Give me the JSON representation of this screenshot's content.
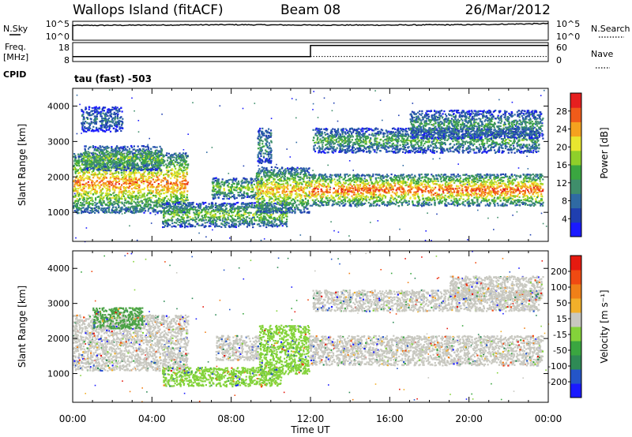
{
  "header": {
    "station": "Wallops Island (fitACF)",
    "beam": "Beam 08",
    "date": "26/Mar/2012"
  },
  "top_strip": {
    "left_label": "N.Sky",
    "left_ticks": [
      "10^5",
      "10^0"
    ],
    "right_ticks": [
      "10^5",
      "10^0"
    ],
    "right_label": "N.Search"
  },
  "freq_strip": {
    "left_label_1": "Freq.",
    "left_label_2": "[MHz]",
    "left_ticks": [
      "18",
      "8"
    ],
    "right_ticks": [
      "60",
      "0"
    ],
    "right_label": "Nave",
    "cpid_label": "CPID",
    "cpid_value": "tau (fast) -503"
  },
  "chart_data": [
    {
      "type": "line",
      "title": "N.Sky / N.Search",
      "x": [
        "00:00",
        "04:00",
        "08:00",
        "12:00",
        "16:00",
        "20:00",
        "00:00"
      ],
      "ylim_log10": [
        0,
        5
      ],
      "series": [
        {
          "name": "N.Sky",
          "values_log10": [
            3.9,
            4.0,
            4.1,
            4.0,
            4.0,
            4.1,
            4.4
          ]
        }
      ]
    },
    {
      "type": "line",
      "title": "Freq. / Nave",
      "xlim_hours": [
        0,
        24
      ],
      "left_ylim": [
        8,
        18
      ],
      "right_ylim": [
        0,
        60
      ],
      "series": [
        {
          "name": "Freq.",
          "points": [
            [
              0,
              10.6
            ],
            [
              12.0,
              10.6
            ],
            [
              12.0,
              16.5
            ],
            [
              24,
              16.5
            ]
          ]
        },
        {
          "name": "Nave",
          "points": [
            [
              0,
              16
            ],
            [
              24,
              16
            ]
          ]
        }
      ]
    },
    {
      "type": "heatmap",
      "title": "Power",
      "xlabel": "",
      "ylabel": "Slant Range [km]",
      "xlim_hours": [
        0,
        24
      ],
      "ylim": [
        180,
        4500
      ],
      "yticks": [
        "1000",
        "2000",
        "3000",
        "4000"
      ],
      "colorbar_label": "Power [dB]",
      "colorbar_ticks": [
        "4",
        "8",
        "12",
        "16",
        "20",
        "24",
        "28"
      ],
      "colorbar_colors": [
        "#1a1aff",
        "#1f3fb0",
        "#2f6aa3",
        "#3f8e6b",
        "#3aa640",
        "#8fcf2a",
        "#e9e62f",
        "#f5a21f",
        "#f05b1a",
        "#e61f1f"
      ],
      "bands": [
        {
          "t0": 0.0,
          "t1": 5.8,
          "r0": 1000,
          "r1": 2700,
          "level": 0.82
        },
        {
          "t0": 0.5,
          "t1": 4.5,
          "r0": 2200,
          "r1": 2900,
          "level": 0.55
        },
        {
          "t0": 0.4,
          "t1": 2.5,
          "r0": 3300,
          "r1": 4000,
          "level": 0.3
        },
        {
          "t0": 4.5,
          "t1": 10.8,
          "r0": 600,
          "r1": 1300,
          "level": 0.55
        },
        {
          "t0": 7.0,
          "t1": 9.5,
          "r0": 1400,
          "r1": 2000,
          "level": 0.55
        },
        {
          "t0": 9.2,
          "t1": 11.9,
          "r0": 1000,
          "r1": 2300,
          "level": 0.75
        },
        {
          "t0": 9.3,
          "t1": 10.0,
          "r0": 2400,
          "r1": 3400,
          "level": 0.4
        },
        {
          "t0": 11.9,
          "t1": 23.7,
          "r0": 1200,
          "r1": 2100,
          "level": 0.88
        },
        {
          "t0": 12.1,
          "t1": 23.5,
          "r0": 2700,
          "r1": 3400,
          "level": 0.45
        },
        {
          "t0": 17.0,
          "t1": 23.7,
          "r0": 3100,
          "r1": 3900,
          "level": 0.4
        }
      ]
    },
    {
      "type": "heatmap",
      "title": "Velocity",
      "xlabel": "Time UT",
      "ylabel": "Slant Range [km]",
      "xlim_hours": [
        0,
        24
      ],
      "ylim": [
        180,
        4500
      ],
      "yticks": [
        "1000",
        "2000",
        "3000",
        "4000"
      ],
      "xticks": [
        "00:00",
        "04:00",
        "08:00",
        "12:00",
        "16:00",
        "20:00",
        "00:00"
      ],
      "colorbar_label": "Velocity [m s⁻¹]",
      "colorbar_ticks": [
        "200",
        "100",
        "50",
        "15",
        "-15",
        "-50",
        "-100",
        "-200"
      ],
      "colorbar_colors": [
        "#1a1aff",
        "#2455c8",
        "#2e8a55",
        "#3aa640",
        "#84d33a",
        "#c8c8c0",
        "#f2b02a",
        "#f08018",
        "#f04a12",
        "#e61a10"
      ],
      "bands": [
        {
          "t0": 0.0,
          "t1": 5.8,
          "r0": 1100,
          "r1": 2700,
          "color": "#c8c8c0"
        },
        {
          "t0": 1.0,
          "t1": 3.5,
          "r0": 2300,
          "r1": 2900,
          "color": "#4aa245"
        },
        {
          "t0": 4.5,
          "t1": 10.5,
          "r0": 650,
          "r1": 1200,
          "color": "#84d33a"
        },
        {
          "t0": 7.2,
          "t1": 9.4,
          "r0": 1400,
          "r1": 2100,
          "color": "#c8c8c0"
        },
        {
          "t0": 9.4,
          "t1": 11.9,
          "r0": 1000,
          "r1": 2400,
          "color": "#84d33a"
        },
        {
          "t0": 11.9,
          "t1": 23.7,
          "r0": 1250,
          "r1": 2100,
          "color": "#c8c8c0"
        },
        {
          "t0": 12.1,
          "t1": 23.5,
          "r0": 2800,
          "r1": 3400,
          "color": "#c8c8c0"
        },
        {
          "t0": 19.0,
          "t1": 23.7,
          "r0": 3100,
          "r1": 3800,
          "color": "#c8c8c0"
        }
      ]
    }
  ]
}
